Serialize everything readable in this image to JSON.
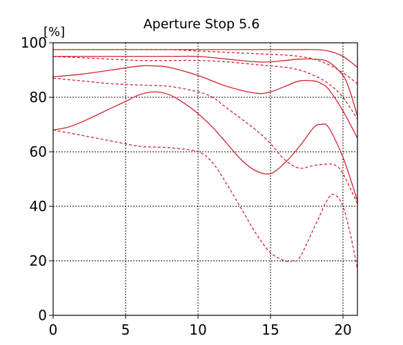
{
  "chart_data": {
    "type": "line",
    "title": "Aperture Stop 5.6",
    "xlabel": "",
    "ylabel": "[%]",
    "xlim": [
      0,
      21
    ],
    "ylim": [
      0,
      100
    ],
    "xticks": [
      "0",
      "5",
      "10",
      "15",
      "20"
    ],
    "yticks": [
      "0",
      "20",
      "40",
      "60",
      "80",
      "100"
    ],
    "grid": true,
    "line_color": "#d0202c",
    "series": [
      {
        "style": "solid",
        "x": [
          0,
          2,
          4,
          6,
          8,
          10,
          12,
          14,
          16,
          17,
          18,
          19,
          20,
          21
        ],
        "values": [
          97.5,
          97.5,
          97.5,
          97.5,
          97.5,
          97.5,
          97.5,
          97.5,
          97.5,
          97.5,
          97.5,
          97,
          95,
          91
        ]
      },
      {
        "style": "dashed",
        "x": [
          0,
          2,
          4,
          6,
          8,
          10,
          12,
          14,
          16,
          17,
          18,
          19,
          20,
          21
        ],
        "values": [
          97.5,
          97.5,
          97.5,
          97.5,
          97.5,
          97,
          96.5,
          96,
          95.5,
          95,
          94,
          92,
          89,
          85
        ]
      },
      {
        "style": "solid",
        "x": [
          0,
          2,
          4,
          6,
          8,
          10,
          12,
          14,
          15,
          16,
          17,
          18,
          19,
          20,
          20.5,
          21
        ],
        "values": [
          95,
          95,
          95,
          95,
          95,
          95,
          94,
          93,
          93,
          93.5,
          94,
          94,
          93,
          88,
          82,
          73
        ]
      },
      {
        "style": "dashed",
        "x": [
          0,
          2,
          4,
          6,
          8,
          10,
          12,
          14,
          16,
          17,
          18,
          19,
          20,
          21
        ],
        "values": [
          95,
          94.5,
          94,
          93.5,
          93.5,
          93.5,
          93,
          92,
          91,
          90,
          88,
          85,
          80,
          72
        ]
      },
      {
        "style": "solid",
        "x": [
          0,
          2,
          4,
          6,
          7,
          8,
          10,
          12,
          14,
          15,
          16,
          17,
          18,
          18.5,
          19,
          20,
          21
        ],
        "values": [
          87.5,
          88.5,
          90,
          91.5,
          91.5,
          91,
          88,
          84,
          81.5,
          82,
          84,
          86,
          86,
          85,
          83,
          75,
          65
        ]
      },
      {
        "style": "dashed",
        "x": [
          0,
          2,
          4,
          6,
          8,
          10,
          11,
          12,
          14,
          15,
          16,
          17,
          18,
          19,
          19.5,
          20,
          21
        ],
        "values": [
          87,
          86,
          85,
          84.5,
          84,
          82,
          80,
          76,
          68,
          63,
          57,
          54,
          55,
          55.5,
          55,
          52,
          41
        ]
      },
      {
        "style": "solid",
        "x": [
          0,
          1,
          2,
          4,
          5,
          6,
          7,
          8,
          9,
          10,
          11,
          12,
          13,
          14,
          15,
          16,
          17,
          18,
          18.5,
          19,
          20,
          21
        ],
        "values": [
          68,
          69,
          71,
          76,
          78.5,
          81,
          82,
          81,
          78,
          74,
          69,
          63,
          57,
          53,
          52,
          56,
          62,
          69,
          70,
          69,
          58,
          42
        ]
      },
      {
        "style": "dashed",
        "x": [
          0,
          2,
          4,
          6,
          8,
          10,
          11,
          12,
          13,
          14,
          15,
          16,
          16.5,
          17,
          18,
          19,
          19.5,
          20,
          20.5,
          21
        ],
        "values": [
          68,
          66,
          64,
          62,
          61.5,
          60,
          56,
          48,
          39,
          30,
          23,
          20,
          20,
          21,
          32,
          43,
          44,
          40,
          30,
          17
        ]
      }
    ]
  }
}
